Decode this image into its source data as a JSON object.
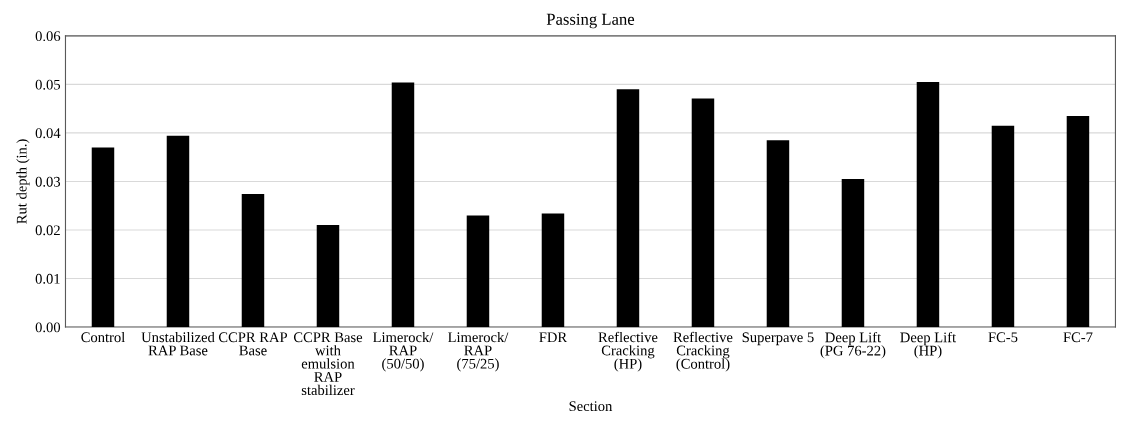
{
  "chart_data": {
    "type": "bar",
    "title": "Passing Lane",
    "xlabel": "Section",
    "ylabel": "Rut depth (in.)",
    "categories": [
      "Control",
      "Unstabilized\nRAP Base",
      "CCPR RAP\nBase",
      "CCPR Base\nwith\nemulsion\nRAP\nstabilizer",
      "Limerock/\nRAP\n(50/50)",
      "Limerock/\nRAP\n(75/25)",
      "FDR",
      "Reflective\nCracking\n(HP)",
      "Reflective\nCracking\n(Control)",
      "Superpave 5",
      "Deep Lift\n(PG 76-22)",
      "Deep Lift\n(HP)",
      "FC-5",
      "FC-7"
    ],
    "values": [
      0.037,
      0.0394,
      0.0274,
      0.021,
      0.0504,
      0.023,
      0.0234,
      0.049,
      0.0471,
      0.0385,
      0.0305,
      0.0505,
      0.0415,
      0.0435
    ],
    "color": "#000000",
    "ylim": [
      0,
      0.06
    ],
    "yticks": [
      {
        "value": 0,
        "label": "0.00"
      },
      {
        "value": 0.01,
        "label": "0.01"
      },
      {
        "value": 0.02,
        "label": "0.02"
      },
      {
        "value": 0.03,
        "label": "0.03"
      },
      {
        "value": 0.04,
        "label": "0.04"
      },
      {
        "value": 0.05,
        "label": "0.05"
      },
      {
        "value": 0.06,
        "label": "0.06"
      }
    ],
    "grid": "y"
  }
}
